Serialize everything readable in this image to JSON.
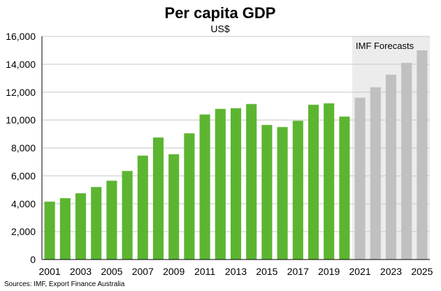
{
  "chart_data": {
    "type": "bar",
    "title": "Per capita GDP",
    "subtitle": "US$",
    "categories": [
      "2001",
      "2002",
      "2003",
      "2004",
      "2005",
      "2006",
      "2007",
      "2008",
      "2009",
      "2010",
      "2011",
      "2012",
      "2013",
      "2014",
      "2015",
      "2016",
      "2017",
      "2018",
      "2019",
      "2020",
      "2021",
      "2022",
      "2023",
      "2024",
      "2025"
    ],
    "x_tick_labels": [
      "2001",
      "2003",
      "2005",
      "2007",
      "2009",
      "2011",
      "2013",
      "2015",
      "2017",
      "2019",
      "2021",
      "2023",
      "2025"
    ],
    "values": [
      4150,
      4400,
      4750,
      5200,
      5650,
      6350,
      7450,
      8750,
      7550,
      9050,
      10400,
      10800,
      10850,
      11150,
      9650,
      9500,
      9950,
      11100,
      11200,
      10250,
      11600,
      12350,
      13250,
      14100,
      15000
    ],
    "forecast_from_index": 20,
    "forecast_label": "IMF Forecasts",
    "ylim": [
      0,
      16000
    ],
    "y_ticks": [
      0,
      2000,
      4000,
      6000,
      8000,
      10000,
      12000,
      14000,
      16000
    ],
    "y_tick_labels": [
      "0",
      "2,000",
      "4,000",
      "6,000",
      "8,000",
      "10,000",
      "12,000",
      "14,000",
      "16,000"
    ],
    "xlabel": "",
    "ylabel": "",
    "grid": "horizontal",
    "source": "Sources: IMF, Export Finance Australia",
    "colors": {
      "actual": "#5cb531",
      "forecast": "#c0c0c0",
      "forecast_band": "#ececec",
      "grid": "#c8c8c8"
    }
  }
}
